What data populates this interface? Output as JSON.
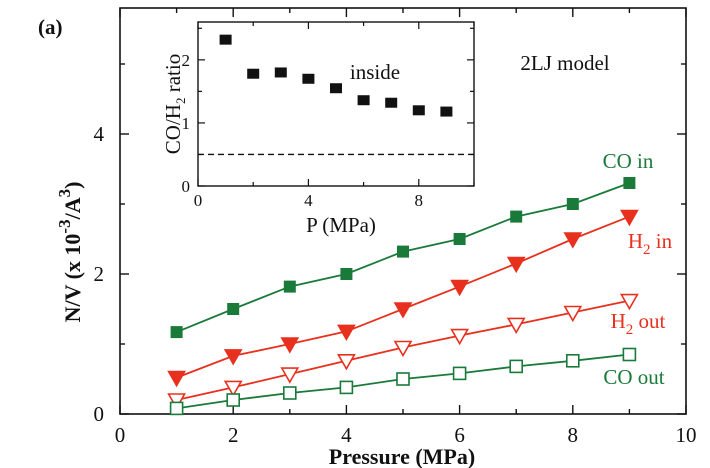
{
  "panel_label": "(a)",
  "model_label": "2LJ model",
  "colors": {
    "co_series": "#1a7a3a",
    "h2_series": "#e8301e",
    "inset_marker": "#111111",
    "axis": "#111111"
  },
  "chart_data": [
    {
      "type": "line",
      "x": [
        1,
        2,
        3,
        4,
        5,
        6,
        7,
        8,
        9
      ],
      "xlabel": "Pressure (MPa)",
      "ylabel": "N/V (x 10",
      "ylabel_exp": "-3",
      "ylabel_tail": "/A",
      "ylabel_exp2": "3",
      "ylabel_close": ")",
      "xlim": [
        0,
        10
      ],
      "ylim": [
        0,
        5.8
      ],
      "xticks": [
        "0",
        "2",
        "4",
        "6",
        "8",
        "10"
      ],
      "yticks": [
        "0",
        "2",
        "4"
      ],
      "series": [
        {
          "name": "CO in",
          "marker": "filled-square",
          "values": [
            1.17,
            1.5,
            1.82,
            2.0,
            2.32,
            2.5,
            2.82,
            3.0,
            3.3
          ]
        },
        {
          "name": "H",
          "name_sub": "2",
          "name_tail": " in",
          "marker": "filled-triangle-down",
          "values": [
            0.52,
            0.83,
            1.0,
            1.18,
            1.5,
            1.82,
            2.15,
            2.5,
            2.82
          ]
        },
        {
          "name": "H",
          "name_sub": "2",
          "name_tail": " out",
          "marker": "open-triangle-down",
          "values": [
            0.2,
            0.38,
            0.57,
            0.76,
            0.95,
            1.12,
            1.28,
            1.45,
            1.62
          ]
        },
        {
          "name": "CO out",
          "marker": "open-square",
          "values": [
            0.08,
            0.2,
            0.3,
            0.38,
            0.5,
            0.58,
            0.68,
            0.76,
            0.85
          ]
        }
      ]
    },
    {
      "type": "scatter",
      "x": [
        1,
        2,
        3,
        4,
        5,
        6,
        7,
        8,
        9
      ],
      "values": [
        2.32,
        1.78,
        1.8,
        1.7,
        1.55,
        1.36,
        1.32,
        1.2,
        1.18
      ],
      "xlabel": "P (MPa)",
      "ylabel": "CO/H",
      "ylabel_sub": "2",
      "ylabel_tail": " ratio",
      "annotation": "inside",
      "reference_line": 0.5,
      "xlim": [
        0,
        10
      ],
      "ylim": [
        0,
        2.6
      ],
      "xticks": [
        "0",
        "4",
        "8"
      ],
      "yticks": [
        "0",
        "1",
        "2"
      ]
    }
  ]
}
